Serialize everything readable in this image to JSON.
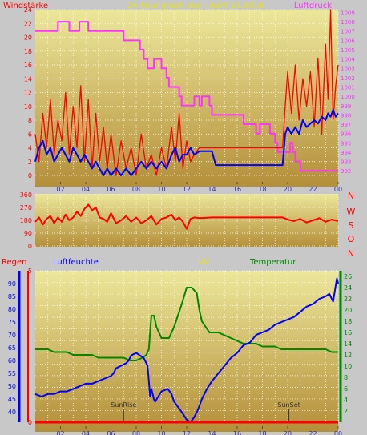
{
  "title": "24 hour graph day : April 10.2018",
  "colors": {
    "background": "#c8c8c8",
    "plot_top": "#ece79a",
    "plot_bottom": "#b48f39",
    "grid": "#ffffff",
    "windspeed": "#ff0000",
    "windgust": "#0000ff",
    "pressure": "#ff33ff",
    "direction": "#ff0000",
    "rain": "#ff0000",
    "humidity": "#0000ff",
    "uv": "#e6e600",
    "temperature": "#008800"
  },
  "chart_data": [
    {
      "type": "line",
      "id": "wind-pressure",
      "title": "24 hour graph day : April 10.2018",
      "left_label": "Windstärke",
      "right_label": "Luftdruck",
      "x_ticks": [
        "02",
        "04",
        "06",
        "08",
        "10",
        "12",
        "14",
        "16",
        "18",
        "20",
        "22",
        "00"
      ],
      "xlim": [
        0,
        24
      ],
      "y_left": {
        "ticks": [
          "0",
          "2",
          "4",
          "6",
          "8",
          "10",
          "12",
          "14",
          "16",
          "18",
          "20",
          "22",
          "24"
        ],
        "ylim": [
          0,
          24
        ]
      },
      "y_right": {
        "ticks": [
          "992",
          "993",
          "994",
          "995",
          "996",
          "997",
          "998",
          "999",
          "1000",
          "1001",
          "1002",
          "1003",
          "1004",
          "1005",
          "1006",
          "1007",
          "1008",
          "1009"
        ],
        "ylim": [
          991.5,
          1009.3
        ]
      },
      "grid": true,
      "series": [
        {
          "axis": "left",
          "x": [
            0.0,
            0.3,
            0.6,
            0.9,
            1.2,
            1.5,
            1.8,
            2.1,
            2.4,
            2.7,
            3.0,
            3.3,
            3.6,
            3.9,
            4.2,
            4.5,
            4.8,
            5.1,
            5.4,
            5.7,
            6.0,
            6.4,
            6.8,
            7.2,
            7.6,
            8.0,
            8.4,
            8.8,
            9.2,
            9.6,
            10.0,
            10.4,
            10.8,
            11.1,
            11.4,
            11.7,
            12.0,
            12.3,
            12.6,
            13.0,
            14.0,
            15.0,
            16.0,
            17.0,
            18.0,
            19.0,
            19.6,
            19.8,
            20.0,
            20.3,
            20.6,
            20.9,
            21.2,
            21.5,
            21.8,
            22.1,
            22.4,
            22.7,
            23.0,
            23.2,
            23.4,
            23.6,
            23.8,
            24.0
          ],
          "values": [
            6,
            2,
            9,
            4,
            11,
            3,
            8,
            5,
            12,
            3,
            10,
            4,
            13,
            2,
            11,
            1,
            9,
            2,
            7,
            1,
            6,
            0,
            5,
            1,
            4,
            0,
            6,
            1,
            3,
            0,
            4,
            1,
            7,
            2,
            9,
            1,
            5,
            2,
            3,
            4,
            4,
            4,
            4,
            4,
            4,
            4,
            4,
            10,
            15,
            9,
            16,
            8,
            14,
            10,
            15,
            7,
            17,
            6,
            19,
            11,
            24,
            8,
            13,
            16
          ]
        },
        {
          "axis": "left",
          "x": [
            0.0,
            0.3,
            0.6,
            0.9,
            1.2,
            1.5,
            1.8,
            2.1,
            2.4,
            2.7,
            3.0,
            3.3,
            3.6,
            3.9,
            4.2,
            4.5,
            4.8,
            5.1,
            5.4,
            5.7,
            6.0,
            6.4,
            6.8,
            7.2,
            7.6,
            8.0,
            8.4,
            8.8,
            9.2,
            9.6,
            10.0,
            10.4,
            10.8,
            11.1,
            11.4,
            11.7,
            12.0,
            12.3,
            12.6,
            13.0,
            14.0,
            14.3,
            15.0,
            16.0,
            17.0,
            18.0,
            19.0,
            19.6,
            19.8,
            20.0,
            20.3,
            20.6,
            20.9,
            21.2,
            21.5,
            21.8,
            22.1,
            22.4,
            22.7,
            23.0,
            23.2,
            23.4,
            23.6,
            23.8,
            24.0
          ],
          "values": [
            2,
            4,
            5,
            3,
            4,
            2,
            3,
            4,
            3,
            2,
            4,
            3,
            2,
            3,
            2,
            1,
            2,
            1,
            0,
            1,
            0,
            1,
            0,
            1,
            0,
            1,
            2,
            1,
            2,
            1,
            2,
            1,
            3,
            4,
            2,
            3,
            3,
            4,
            3,
            3.5,
            3.5,
            1.5,
            1.5,
            1.5,
            1.5,
            1.5,
            1.5,
            1.5,
            6,
            7,
            6,
            7,
            6,
            8,
            7,
            7.5,
            8,
            7.5,
            8.5,
            8,
            9,
            8.5,
            9.5,
            8.5,
            9
          ]
        },
        {
          "axis": "right",
          "x": [
            0.0,
            1.8,
            1.8,
            2.7,
            2.7,
            3.5,
            3.5,
            4.2,
            4.2,
            7.0,
            7.0,
            8.3,
            8.3,
            8.6,
            8.6,
            8.9,
            8.9,
            9.4,
            9.4,
            10.0,
            10.0,
            10.4,
            10.4,
            10.6,
            10.6,
            11.4,
            11.4,
            11.6,
            11.6,
            12.6,
            12.6,
            13.0,
            13.0,
            13.2,
            13.2,
            13.8,
            13.8,
            14.0,
            14.0,
            15.0,
            15.0,
            16.5,
            16.5,
            17.5,
            17.5,
            17.8,
            17.8,
            18.6,
            18.6,
            19.0,
            19.0,
            19.2,
            19.2,
            20.2,
            20.2,
            20.4,
            20.4,
            20.6,
            20.6,
            21.0,
            21.0,
            24.0
          ],
          "values": [
            1007,
            1007,
            1008,
            1008,
            1007,
            1007,
            1008,
            1008,
            1007,
            1007,
            1006,
            1006,
            1005,
            1005,
            1004,
            1004,
            1003,
            1003,
            1004,
            1004,
            1003,
            1003,
            1002,
            1002,
            1001,
            1001,
            1000,
            1000,
            999,
            999,
            1000,
            1000,
            999,
            999,
            1000,
            1000,
            999,
            999,
            998,
            998,
            998,
            998,
            997,
            997,
            996,
            996,
            997,
            997,
            996,
            996,
            995,
            995,
            994,
            994,
            995,
            995,
            994,
            994,
            993,
            993,
            992,
            992
          ]
        }
      ],
      "annotations": []
    },
    {
      "type": "line",
      "id": "wind-direction",
      "title": "",
      "y_ticks": [
        "0",
        "90",
        "180",
        "270",
        "360"
      ],
      "ylim": [
        0,
        360
      ],
      "y_right_labels": [
        "N",
        "W",
        "S",
        "O",
        "N"
      ],
      "grid": true,
      "series": [
        {
          "axis": "left",
          "x": [
            0.0,
            0.3,
            0.6,
            0.9,
            1.2,
            1.5,
            1.8,
            2.1,
            2.4,
            2.7,
            3.0,
            3.3,
            3.6,
            3.9,
            4.2,
            4.5,
            4.8,
            5.1,
            5.4,
            5.7,
            6.0,
            6.4,
            6.8,
            7.2,
            7.6,
            8.0,
            8.4,
            8.8,
            9.2,
            9.6,
            10.0,
            10.4,
            10.8,
            11.1,
            11.4,
            11.7,
            12.0,
            12.3,
            12.6,
            13.0,
            14.0,
            15.0,
            16.0,
            17.0,
            18.0,
            19.0,
            19.6,
            20.0,
            20.5,
            21.0,
            21.5,
            22.0,
            22.5,
            23.0,
            23.5,
            24.0
          ],
          "values": [
            170,
            200,
            150,
            190,
            210,
            160,
            200,
            170,
            220,
            180,
            200,
            240,
            210,
            260,
            290,
            250,
            270,
            200,
            190,
            170,
            230,
            160,
            180,
            210,
            170,
            200,
            160,
            180,
            210,
            150,
            190,
            200,
            220,
            180,
            200,
            170,
            120,
            190,
            200,
            195,
            200,
            200,
            200,
            200,
            200,
            200,
            200,
            185,
            175,
            190,
            165,
            180,
            195,
            170,
            185,
            175
          ]
        }
      ]
    },
    {
      "type": "line",
      "id": "rain-humidity-uv-temp",
      "title": "",
      "labels": {
        "rain": "Regen",
        "humidity": "Luftfeuchte",
        "uv": "UV",
        "temperature": "Temperatur"
      },
      "x_ticks": [
        "02",
        "04",
        "06",
        "08",
        "10",
        "12",
        "14",
        "16",
        "18",
        "20",
        "22",
        "00"
      ],
      "xlim": [
        0,
        24
      ],
      "y_left_rain": {
        "ticks": [
          "0",
          "5"
        ],
        "ylim": [
          0,
          5
        ]
      },
      "y_left_humidity": {
        "ticks": [
          "40",
          "45",
          "50",
          "55",
          "60",
          "65",
          "70",
          "75",
          "80",
          "85",
          "90"
        ],
        "ylim": [
          36,
          95
        ]
      },
      "y_right_temp": {
        "ticks": [
          "2",
          "4",
          "6",
          "8",
          "10",
          "12",
          "14",
          "16",
          "18",
          "20",
          "22",
          "24",
          "26"
        ],
        "ylim": [
          0,
          27
        ]
      },
      "grid": true,
      "annotations": [
        {
          "label": "SunRise",
          "x": 7.0
        },
        {
          "label": "SunSet",
          "x": 20.1
        }
      ],
      "series": [
        {
          "name": "Luftfeuchte",
          "axis": "left",
          "x": [
            0.0,
            0.5,
            1.0,
            1.5,
            2.0,
            2.5,
            3.0,
            3.5,
            4.0,
            4.5,
            5.0,
            5.5,
            6.0,
            6.2,
            6.4,
            6.8,
            7.2,
            7.4,
            7.6,
            8.0,
            8.3,
            8.6,
            8.9,
            9.0,
            9.1,
            9.2,
            9.3,
            9.4,
            9.5,
            10.0,
            10.5,
            10.8,
            11.0,
            11.3,
            11.6,
            12.0,
            12.3,
            12.6,
            12.9,
            13.2,
            13.6,
            14.0,
            14.5,
            15.0,
            15.5,
            16.0,
            16.5,
            17.0,
            17.5,
            18.0,
            18.5,
            19.0,
            19.5,
            20.0,
            20.5,
            21.0,
            21.5,
            22.0,
            22.5,
            23.0,
            23.3,
            23.6,
            23.9,
            24.0
          ],
          "values": [
            47,
            46,
            47,
            47,
            48,
            48,
            49,
            50,
            51,
            51,
            52,
            53,
            54,
            55,
            57,
            58,
            59,
            60,
            62,
            63,
            62,
            61,
            58,
            52,
            46,
            49,
            47,
            45,
            44,
            48,
            49,
            47,
            44,
            42,
            40,
            37,
            36,
            38,
            41,
            45,
            49,
            52,
            55,
            58,
            61,
            63,
            66,
            67,
            70,
            71,
            72,
            74,
            75,
            76,
            77,
            79,
            81,
            82,
            84,
            85,
            86,
            83,
            92,
            90
          ]
        },
        {
          "name": "Temperatur",
          "axis": "right",
          "x": [
            0.0,
            0.5,
            1.0,
            1.5,
            2.0,
            2.5,
            3.0,
            3.5,
            4.0,
            4.5,
            5.0,
            5.5,
            6.0,
            6.5,
            7.0,
            7.5,
            8.0,
            8.5,
            8.8,
            9.0,
            9.1,
            9.2,
            9.4,
            9.6,
            10.0,
            10.3,
            10.6,
            11.0,
            11.3,
            11.6,
            12.0,
            12.4,
            12.8,
            13.0,
            13.2,
            13.5,
            13.8,
            14.0,
            14.5,
            15.0,
            15.5,
            16.0,
            16.5,
            17.0,
            17.5,
            18.0,
            18.5,
            19.0,
            19.5,
            20.0,
            20.5,
            21.0,
            21.5,
            22.0,
            22.5,
            23.0,
            23.5,
            24.0
          ],
          "values": [
            13,
            13,
            13,
            12.5,
            12.5,
            12.5,
            12,
            12,
            12,
            12,
            11.5,
            11.5,
            11.5,
            11.5,
            11.5,
            11,
            11,
            11.5,
            12,
            13,
            16,
            19,
            19,
            17,
            15,
            15,
            15,
            17,
            19,
            21,
            24,
            24,
            23,
            20,
            18,
            17,
            16,
            16,
            16,
            15.5,
            15,
            14.5,
            14,
            14,
            14,
            13.5,
            13.5,
            13.5,
            13,
            13,
            13,
            13,
            13,
            13,
            13,
            13,
            12.5,
            12.5
          ]
        },
        {
          "name": "Regen",
          "axis": "left-rain",
          "x": [
            0,
            24
          ],
          "values": [
            0,
            0
          ]
        }
      ]
    }
  ]
}
